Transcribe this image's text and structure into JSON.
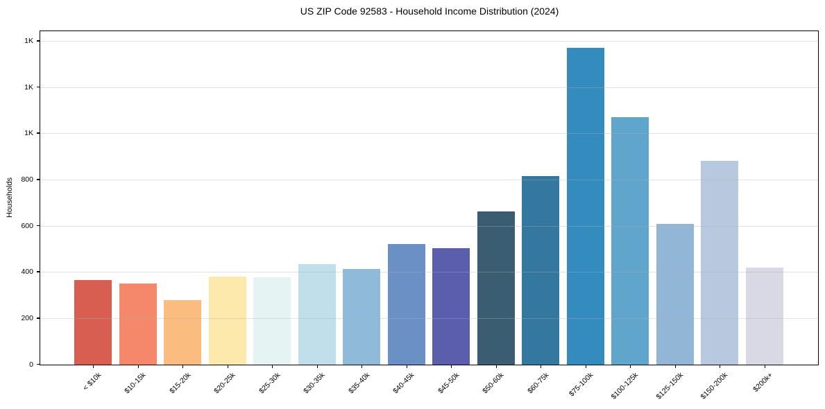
{
  "figure": {
    "background": "#ffffff",
    "text_color": "#000000",
    "grid_color": "#e6e6e6"
  },
  "chart_data": {
    "type": "bar",
    "title": "US ZIP Code 92583 - Household Income Distribution (2024)",
    "xlabel": "",
    "ylabel": "Households",
    "ylim": [
      0,
      1440
    ],
    "grid": true,
    "legend_position": "none",
    "categories": [
      "< $10k",
      "$10-15k",
      "$15-20k",
      "$20-25k",
      "$25-30k",
      "$30-35k",
      "$35-40k",
      "$40-45k",
      "$45-50k",
      "$50-60k",
      "$60-75k",
      "$75-100k",
      "$100-125k",
      "$125-150k",
      "$150-200k",
      "$200k+"
    ],
    "values": [
      365,
      350,
      280,
      382,
      377,
      434,
      415,
      521,
      504,
      663,
      815,
      1370,
      1072,
      608,
      881,
      420
    ],
    "bar_colors": [
      "#d95e52",
      "#f5886b",
      "#fbbc80",
      "#fce9ab",
      "#e5f3f3",
      "#c0dfeb",
      "#8fbada",
      "#6a90c5",
      "#5a5ead",
      "#3a5d72",
      "#35789f",
      "#348cbe",
      "#60a5cb",
      "#92b6d5",
      "#b7c8df",
      "#d8d9e5"
    ],
    "yticks": [
      {
        "value": 0,
        "label": "0"
      },
      {
        "value": 200,
        "label": "200"
      },
      {
        "value": 400,
        "label": "400"
      },
      {
        "value": 600,
        "label": "600"
      },
      {
        "value": 800,
        "label": "800"
      },
      {
        "value": 1000,
        "label": "1K"
      },
      {
        "value": 1200,
        "label": "1K"
      },
      {
        "value": 1400,
        "label": "1K"
      }
    ]
  }
}
